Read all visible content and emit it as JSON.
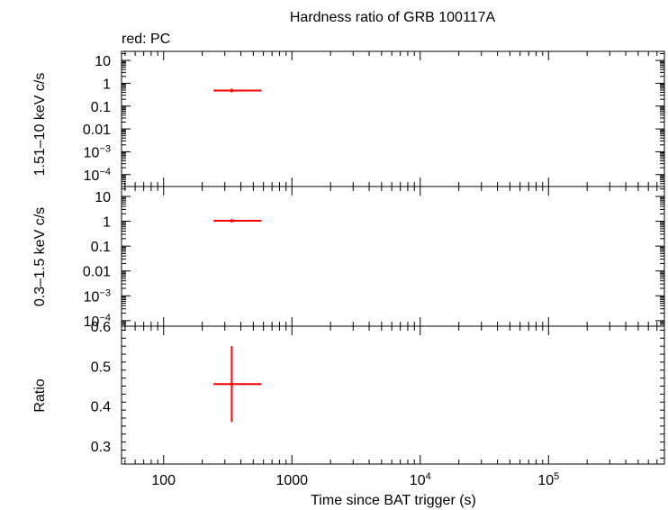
{
  "chart_data": {
    "type": "scatter",
    "title": "Hardness ratio of GRB 100117A",
    "legend_text": "red: PC",
    "xlabel": "Time since BAT trigger (s)",
    "x_scale": "log",
    "xlim": [
      47,
      800000
    ],
    "x_ticks": [
      {
        "value": 100,
        "label": "100"
      },
      {
        "value": 1000,
        "label": "1000"
      },
      {
        "value": 10000,
        "label": "10",
        "sup": "4"
      },
      {
        "value": 100000,
        "label": "10",
        "sup": "5"
      }
    ],
    "series_color": "#ff0000",
    "panels": [
      {
        "ylabel": "1.51–10 keV c/s",
        "y_scale": "log",
        "ylim": [
          3e-05,
          25
        ],
        "y_ticks": [
          {
            "value": 10,
            "label": "10"
          },
          {
            "value": 1,
            "label": "1"
          },
          {
            "value": 0.1,
            "label": "0.1"
          },
          {
            "value": 0.01,
            "label": "0.01"
          },
          {
            "value": 0.001,
            "label": "10",
            "sup": "−3"
          },
          {
            "value": 0.0001,
            "label": "10",
            "sup": "−4"
          }
        ],
        "points": [
          {
            "x": 340,
            "x_lo": 245,
            "x_hi": 580,
            "y": 0.48,
            "y_lo": 0.4,
            "y_hi": 0.58
          }
        ]
      },
      {
        "ylabel": "0.3–1.5 keV c/s",
        "y_scale": "log",
        "ylim": [
          6e-05,
          25
        ],
        "y_ticks": [
          {
            "value": 10,
            "label": "10"
          },
          {
            "value": 1,
            "label": "1"
          },
          {
            "value": 0.1,
            "label": "0.1"
          },
          {
            "value": 0.01,
            "label": "0.01"
          },
          {
            "value": 0.001,
            "label": "10",
            "sup": "−3"
          },
          {
            "value": 0.0001,
            "label": "10",
            "sup": "−4"
          }
        ],
        "points": [
          {
            "x": 340,
            "x_lo": 245,
            "x_hi": 580,
            "y": 1.05,
            "y_lo": 0.9,
            "y_hi": 1.2
          }
        ]
      },
      {
        "ylabel": "Ratio",
        "y_scale": "linear",
        "ylim": [
          0.255,
          0.6
        ],
        "y_ticks": [
          {
            "value": 0.6,
            "label": "0.6"
          },
          {
            "value": 0.5,
            "label": "0.5"
          },
          {
            "value": 0.4,
            "label": "0.4"
          },
          {
            "value": 0.3,
            "label": "0.3"
          }
        ],
        "points": [
          {
            "x": 340,
            "x_lo": 245,
            "x_hi": 580,
            "y": 0.455,
            "y_lo": 0.36,
            "y_hi": 0.55
          }
        ]
      }
    ]
  }
}
